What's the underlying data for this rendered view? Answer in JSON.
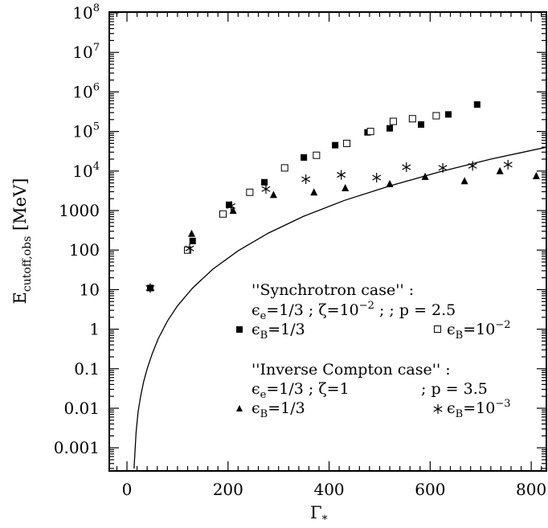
{
  "chart_data": {
    "type": "scatter",
    "xlabel": "Γ",
    "xlabel_sub": "*",
    "ylabel": "E",
    "ylabel_sub": "cutoff,obs",
    "ylabel_unit": "[MeV]",
    "xlim": [
      -35,
      830
    ],
    "ylim": [
      0.0003,
      100000000
    ],
    "yscale": "log",
    "x_ticks": [
      0,
      200,
      400,
      600,
      800
    ],
    "x_tick_labels": [
      "0",
      "200",
      "400",
      "600",
      "800"
    ],
    "y_tick_labels": [
      {
        "value": 100000000,
        "base": "10",
        "exp": "8"
      },
      {
        "value": 10000000,
        "base": "10",
        "exp": "7"
      },
      {
        "value": 1000000,
        "base": "10",
        "exp": "6"
      },
      {
        "value": 100000,
        "base": "10",
        "exp": "5"
      },
      {
        "value": 10000,
        "base": "10",
        "exp": "4"
      },
      {
        "value": 1000,
        "base": "1000",
        "exp": ""
      },
      {
        "value": 100,
        "base": "100",
        "exp": ""
      },
      {
        "value": 10,
        "base": "10",
        "exp": ""
      },
      {
        "value": 1,
        "base": "1",
        "exp": ""
      },
      {
        "value": 0.1,
        "base": "0.1",
        "exp": ""
      },
      {
        "value": 0.01,
        "base": "0.01",
        "exp": ""
      },
      {
        "value": 0.001,
        "base": "0.001",
        "exp": ""
      }
    ],
    "series": [
      {
        "marker": "filled-square",
        "x": [
          46,
          130,
          202,
          272,
          350,
          412,
          476,
          520,
          582,
          636,
          693
        ],
        "y": [
          11,
          170,
          1400,
          5200,
          22000,
          45000,
          95000,
          120000,
          150000,
          270000,
          480000
        ]
      },
      {
        "marker": "open-square",
        "x": [
          120,
          190,
          243,
          312,
          375,
          435,
          482,
          527,
          565,
          612
        ],
        "y": [
          100,
          820,
          2900,
          12000,
          25000,
          50000,
          100000,
          180000,
          210000,
          250000
        ]
      },
      {
        "marker": "filled-triangle",
        "x": [
          46,
          128,
          210,
          290,
          370,
          432,
          520,
          590,
          668,
          738,
          810
        ],
        "y": [
          11,
          260,
          1000,
          2500,
          2900,
          3700,
          4700,
          7200,
          5600,
          10000,
          7500
        ]
      },
      {
        "marker": "asterisk",
        "x": [
          46,
          124,
          206,
          275,
          354,
          424,
          494,
          553,
          625,
          684,
          754
        ],
        "y": [
          11,
          110,
          1300,
          3500,
          6200,
          8000,
          6800,
          12500,
          12000,
          13500,
          14500
        ]
      },
      {
        "marker": "line",
        "x": [
          14,
          18,
          22,
          27,
          33,
          40,
          50,
          62,
          80,
          100,
          130,
          170,
          220,
          280,
          350,
          430,
          520,
          620,
          720,
          830
        ],
        "y": [
          0.0003,
          0.0024,
          0.0081,
          0.02,
          0.047,
          0.1,
          0.24,
          0.58,
          1.6,
          3.9,
          11,
          33,
          96,
          270,
          720,
          1800,
          4200,
          9600,
          20000,
          40000
        ],
        "scale_note": ""
      }
    ],
    "legend": {
      "placement": "lower-right",
      "sync_title": "''Synchrotron case'' :",
      "sync_params": {
        "eps_e": "=1/3",
        "zeta": "=10",
        "zeta_exp": "−2",
        "p": "; p  =  2.5",
        "sep": " ; "
      },
      "sync_entry1": "=1/3",
      "sync_entry2": "=10",
      "sync_entry2_exp": "−2",
      "ic_title": "''Inverse Compton case'' :",
      "ic_params": {
        "eps_e": "=1/3",
        "zeta": "=1",
        "p": "; p  =  3.5",
        "sep": " ; "
      },
      "ic_entry1": "=1/3",
      "ic_entry2": "=10",
      "ic_entry2_exp": "−3",
      "sub_e": "e",
      "sub_B": "B",
      "epsilon": "ϵ",
      "zeta_sym": "ζ"
    }
  }
}
